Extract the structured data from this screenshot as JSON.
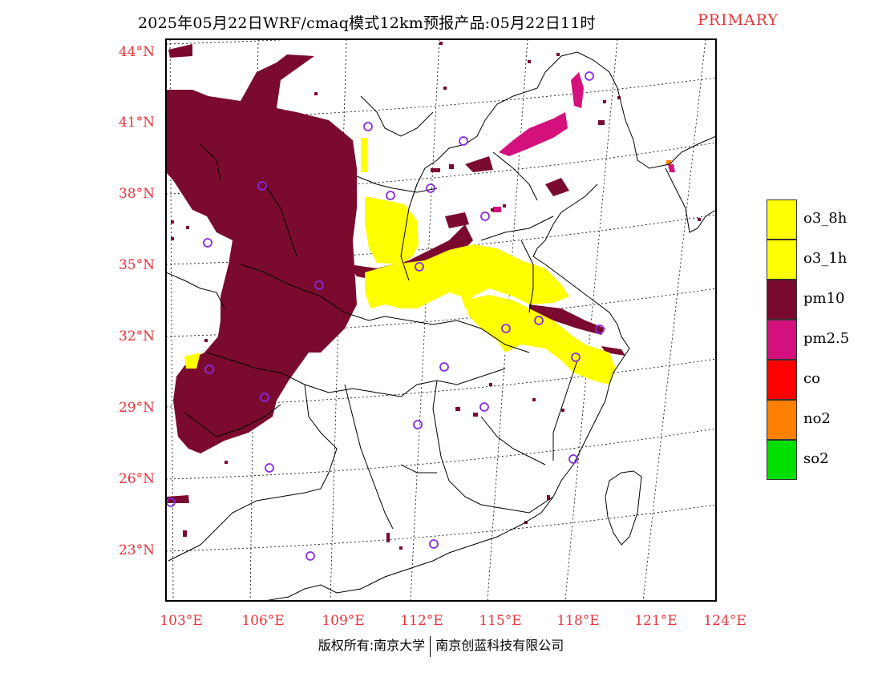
{
  "title": {
    "main": "2025年05月22日WRF/cmaq模式12km预报产品:05月22日11时",
    "primary_label": "PRIMARY"
  },
  "map": {
    "lat_labels": [
      "44°N",
      "41°N",
      "38°N",
      "35°N",
      "32°N",
      "29°N",
      "26°N",
      "23°N"
    ],
    "lon_labels": [
      "103°E",
      "106°E",
      "109°E",
      "112°E",
      "115°E",
      "118°E",
      "121°E",
      "124°E"
    ],
    "colors": {
      "o3_8h": "#ffff00",
      "o3_1h": "#ffff00",
      "pm10": "#7a0a2e",
      "pm2_5": "#d4107c",
      "co": "#ff0000",
      "no2": "#ff7f00",
      "so2": "#00e000",
      "station_marker": "#8a2be2",
      "axis_label": "#e8343a"
    }
  },
  "legend": {
    "items": [
      {
        "label": "o3_8h",
        "color": "#ffff00"
      },
      {
        "label": "o3_1h",
        "color": "#ffff00"
      },
      {
        "label": "pm10",
        "color": "#7a0a2e"
      },
      {
        "label": "pm2.5",
        "color": "#d4107c"
      },
      {
        "label": "co",
        "color": "#ff0000"
      },
      {
        "label": "no2",
        "color": "#ff7f00"
      },
      {
        "label": "so2",
        "color": "#00e000"
      }
    ]
  },
  "footer": {
    "left": "版权所有:南京大学",
    "right": "南京创蓝科技有限公司"
  }
}
